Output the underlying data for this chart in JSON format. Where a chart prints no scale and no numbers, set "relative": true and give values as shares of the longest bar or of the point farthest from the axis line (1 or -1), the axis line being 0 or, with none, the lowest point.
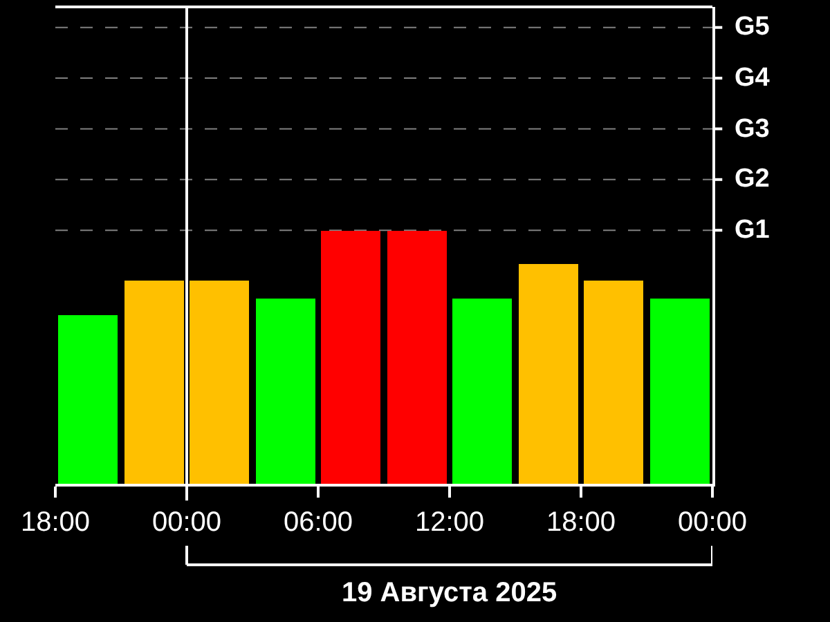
{
  "chart_data": {
    "type": "bar",
    "x": [
      "2025-08-18T19:30",
      "2025-08-18T22:30",
      "2025-08-19T01:30",
      "2025-08-19T04:30",
      "2025-08-19T07:30",
      "2025-08-19T10:30",
      "2025-08-19T13:30",
      "2025-08-19T16:30",
      "2025-08-19T19:30",
      "2025-08-19T22:30"
    ],
    "values": [
      0.667,
      0.8,
      0.8,
      0.733,
      1,
      1,
      0.733,
      0.867,
      0.8,
      0.733
    ],
    "colors": [
      "#00ff00",
      "#ffc000",
      "#ffc000",
      "#00ff00",
      "#ff0000",
      "#ff0000",
      "#00ff00",
      "#ffc000",
      "#ffc000",
      "#00ff00"
    ],
    "relative": true,
    "xlim": [
      "2025-08-18T18:00",
      "2025-08-20T00:00"
    ],
    "xticks": [
      {
        "value": "2025-08-18T18:00",
        "label": "18:00"
      },
      {
        "value": "2025-08-19T00:00",
        "label": "00:00"
      },
      {
        "value": "2025-08-19T06:00",
        "label": "06:00"
      },
      {
        "value": "2025-08-19T12:00",
        "label": "12:00"
      },
      {
        "value": "2025-08-19T18:00",
        "label": "18:00"
      },
      {
        "value": "2025-08-20T00:00",
        "label": "00:00"
      }
    ],
    "ref_lines": [
      {
        "axis": "x",
        "value": "2025-08-19T00:00",
        "color": "#ffffff",
        "line_style": "solid"
      },
      {
        "axis": "y",
        "value": 1,
        "label": "G1",
        "color": "#808080",
        "line_style": "dashed"
      },
      {
        "axis": "y",
        "value": 1.2,
        "label": "G2",
        "color": "#808080",
        "line_style": "dashed"
      },
      {
        "axis": "y",
        "value": 1.4,
        "label": "G3",
        "color": "#808080",
        "line_style": "dashed"
      },
      {
        "axis": "y",
        "value": 1.6,
        "label": "G4",
        "color": "#808080",
        "line_style": "dashed"
      },
      {
        "axis": "y",
        "value": 1.8,
        "label": "G5",
        "color": "#808080",
        "line_style": "dashed"
      }
    ],
    "annotations": [
      "19 Августа 2025"
    ],
    "grid": false,
    "legend": false
  }
}
